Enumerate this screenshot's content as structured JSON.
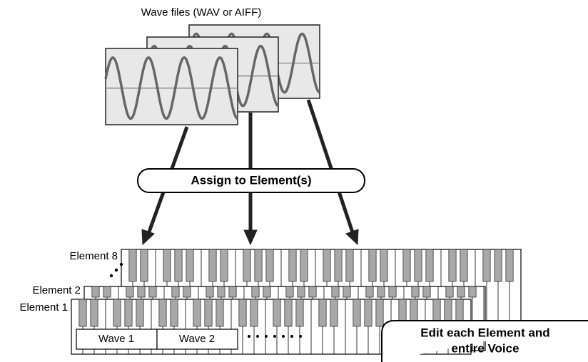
{
  "title": "Wave files (WAV or AIFF)",
  "assign": "Assign to Element(s)",
  "elements": [
    "Element 8",
    "Element 2",
    "Element 1"
  ],
  "waves": [
    "Wave 1",
    "Wave 2"
  ],
  "edit": [
    "Edit each Element and",
    "entire Voice"
  ]
}
